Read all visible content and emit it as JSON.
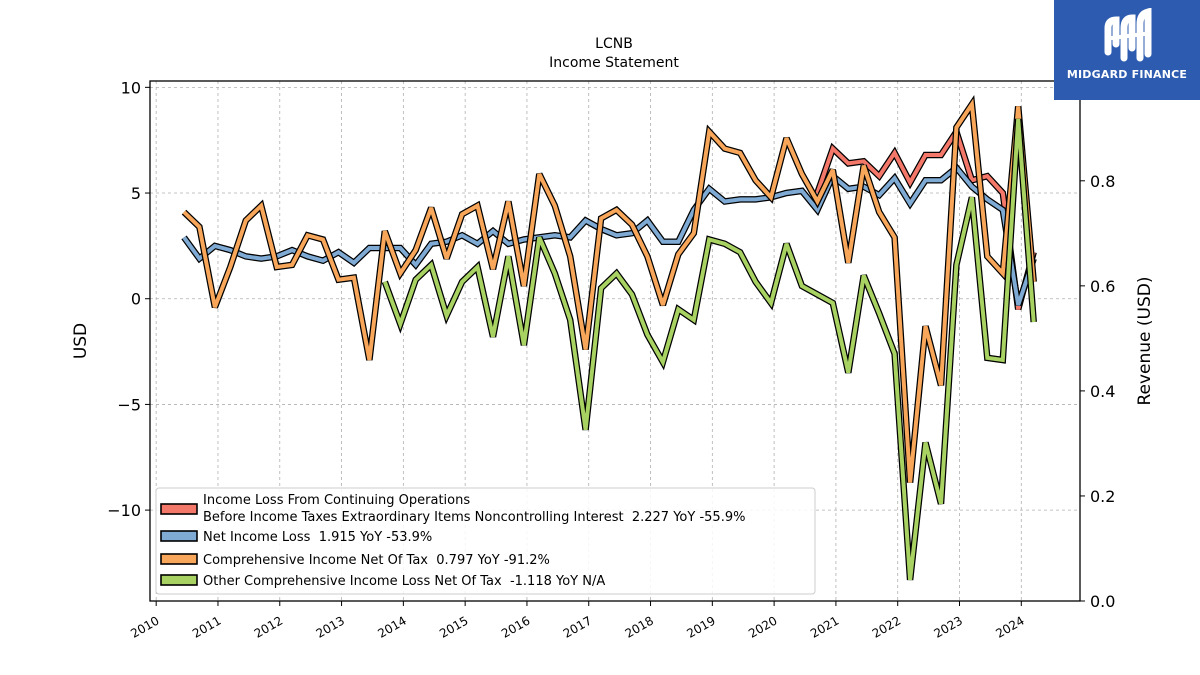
{
  "logo": {
    "text": "MIDGARD FINANCE",
    "background": "#2d5bb0"
  },
  "chart_data": {
    "type": "line",
    "title": "LCNB",
    "subtitle": "Income Statement",
    "ylabel": "USD",
    "y2label": "Revenue (USD)",
    "ylim": [
      -14.3,
      10.3
    ],
    "y2lim": [
      0.0,
      0.99
    ],
    "yticks": [
      10,
      5,
      0,
      -5,
      -10
    ],
    "ytick_labels": [
      "10",
      "5",
      "0",
      "−5",
      "−10"
    ],
    "y2ticks": [
      0.0,
      0.2,
      0.4,
      0.6,
      0.8
    ],
    "y2tick_labels": [
      "0.0",
      "0.2",
      "0.4",
      "0.6",
      "0.8"
    ],
    "xlim": [
      2009.9,
      2024.95
    ],
    "xticks": [
      2010,
      2011,
      2012,
      2013,
      2014,
      2015,
      2016,
      2017,
      2018,
      2019,
      2020,
      2021,
      2022,
      2023,
      2024
    ],
    "xtick_labels": [
      "2010",
      "2011",
      "2012",
      "2013",
      "2014",
      "2015",
      "2016",
      "2017",
      "2018",
      "2019",
      "2020",
      "2021",
      "2022",
      "2023",
      "2024"
    ],
    "grid": true,
    "legend_position": "lower-left",
    "series": [
      {
        "name": "Income Loss From Continuing Operations\nBefore Income Taxes Extraordinary Items Noncontrolling Interest  2.227 YoY -55.9%",
        "color": "#f4786a",
        "points": [
          [
            2020.7,
            5.0
          ],
          [
            2020.95,
            7.1
          ],
          [
            2021.2,
            6.4
          ],
          [
            2021.45,
            6.5
          ],
          [
            2021.7,
            5.8
          ],
          [
            2021.95,
            6.9
          ],
          [
            2022.2,
            5.5
          ],
          [
            2022.45,
            6.8
          ],
          [
            2022.7,
            6.8
          ],
          [
            2022.95,
            7.9
          ],
          [
            2023.2,
            5.6
          ],
          [
            2023.45,
            5.8
          ],
          [
            2023.7,
            5.0
          ],
          [
            2023.95,
            -0.5
          ],
          [
            2024.2,
            2.2
          ]
        ]
      },
      {
        "name": "Net Income Loss  1.915 YoY -53.9%",
        "color": "#7eaad4",
        "points": [
          [
            2010.45,
            2.9
          ],
          [
            2010.7,
            1.9
          ],
          [
            2010.95,
            2.5
          ],
          [
            2011.2,
            2.3
          ],
          [
            2011.45,
            2.0
          ],
          [
            2011.7,
            1.9
          ],
          [
            2011.95,
            2.0
          ],
          [
            2012.2,
            2.3
          ],
          [
            2012.45,
            2.0
          ],
          [
            2012.7,
            1.8
          ],
          [
            2012.95,
            2.2
          ],
          [
            2013.2,
            1.7
          ],
          [
            2013.45,
            2.4
          ],
          [
            2013.7,
            2.4
          ],
          [
            2013.95,
            2.4
          ],
          [
            2014.2,
            1.6
          ],
          [
            2014.45,
            2.6
          ],
          [
            2014.7,
            2.7
          ],
          [
            2014.95,
            3.0
          ],
          [
            2015.2,
            2.6
          ],
          [
            2015.45,
            3.2
          ],
          [
            2015.7,
            2.6
          ],
          [
            2015.95,
            2.8
          ],
          [
            2016.2,
            2.9
          ],
          [
            2016.45,
            3.0
          ],
          [
            2016.7,
            2.9
          ],
          [
            2016.95,
            3.7
          ],
          [
            2017.2,
            3.3
          ],
          [
            2017.45,
            3.0
          ],
          [
            2017.7,
            3.1
          ],
          [
            2017.95,
            3.7
          ],
          [
            2018.2,
            2.7
          ],
          [
            2018.45,
            2.7
          ],
          [
            2018.7,
            4.2
          ],
          [
            2018.95,
            5.2
          ],
          [
            2019.2,
            4.6
          ],
          [
            2019.45,
            4.7
          ],
          [
            2019.7,
            4.7
          ],
          [
            2019.95,
            4.8
          ],
          [
            2020.2,
            5.0
          ],
          [
            2020.45,
            5.1
          ],
          [
            2020.7,
            4.2
          ],
          [
            2020.95,
            5.8
          ],
          [
            2021.2,
            5.2
          ],
          [
            2021.45,
            5.3
          ],
          [
            2021.7,
            4.9
          ],
          [
            2021.95,
            5.7
          ],
          [
            2022.2,
            4.5
          ],
          [
            2022.45,
            5.6
          ],
          [
            2022.7,
            5.6
          ],
          [
            2022.95,
            6.2
          ],
          [
            2023.2,
            5.3
          ],
          [
            2023.45,
            4.7
          ],
          [
            2023.7,
            4.2
          ],
          [
            2023.95,
            -0.3
          ],
          [
            2024.2,
            1.9
          ]
        ]
      },
      {
        "name": "Comprehensive Income Net Of Tax  0.797 YoY -91.2%",
        "color": "#f7a65a",
        "points": [
          [
            2010.45,
            4.1
          ],
          [
            2010.7,
            3.4
          ],
          [
            2010.95,
            -0.4
          ],
          [
            2011.2,
            1.5
          ],
          [
            2011.45,
            3.7
          ],
          [
            2011.7,
            4.4
          ],
          [
            2011.95,
            1.5
          ],
          [
            2012.2,
            1.6
          ],
          [
            2012.45,
            3.0
          ],
          [
            2012.7,
            2.8
          ],
          [
            2012.95,
            0.9
          ],
          [
            2013.2,
            1.0
          ],
          [
            2013.45,
            -2.9
          ],
          [
            2013.7,
            3.2
          ],
          [
            2013.95,
            1.2
          ],
          [
            2014.2,
            2.3
          ],
          [
            2014.45,
            4.3
          ],
          [
            2014.7,
            1.9
          ],
          [
            2014.95,
            4.0
          ],
          [
            2015.2,
            4.4
          ],
          [
            2015.45,
            1.4
          ],
          [
            2015.7,
            4.6
          ],
          [
            2015.95,
            0.6
          ],
          [
            2016.2,
            5.9
          ],
          [
            2016.45,
            4.4
          ],
          [
            2016.7,
            2.0
          ],
          [
            2016.95,
            -2.4
          ],
          [
            2017.2,
            3.8
          ],
          [
            2017.45,
            4.2
          ],
          [
            2017.7,
            3.5
          ],
          [
            2017.95,
            2.0
          ],
          [
            2018.2,
            -0.3
          ],
          [
            2018.45,
            2.1
          ],
          [
            2018.7,
            3.1
          ],
          [
            2018.95,
            7.9
          ],
          [
            2019.2,
            7.1
          ],
          [
            2019.45,
            6.9
          ],
          [
            2019.7,
            5.6
          ],
          [
            2019.95,
            4.8
          ],
          [
            2020.2,
            7.6
          ],
          [
            2020.45,
            5.9
          ],
          [
            2020.7,
            4.6
          ],
          [
            2020.95,
            6.1
          ],
          [
            2021.2,
            1.7
          ],
          [
            2021.45,
            6.3
          ],
          [
            2021.7,
            4.1
          ],
          [
            2021.95,
            2.9
          ],
          [
            2022.2,
            -8.7
          ],
          [
            2022.45,
            -1.3
          ],
          [
            2022.7,
            -4.1
          ],
          [
            2022.95,
            8.1
          ],
          [
            2023.2,
            9.2
          ],
          [
            2023.45,
            2.0
          ],
          [
            2023.7,
            1.2
          ],
          [
            2023.95,
            9.1
          ],
          [
            2024.2,
            0.8
          ]
        ]
      },
      {
        "name": "Other Comprehensive Income Loss Net Of Tax  -1.118 YoY N/A",
        "color": "#a8d262",
        "points": [
          [
            2013.7,
            0.8
          ],
          [
            2013.95,
            -1.2
          ],
          [
            2014.2,
            0.9
          ],
          [
            2014.45,
            1.6
          ],
          [
            2014.7,
            -0.8
          ],
          [
            2014.95,
            0.8
          ],
          [
            2015.2,
            1.5
          ],
          [
            2015.45,
            -1.8
          ],
          [
            2015.7,
            2.0
          ],
          [
            2015.95,
            -2.2
          ],
          [
            2016.2,
            2.9
          ],
          [
            2016.45,
            1.2
          ],
          [
            2016.7,
            -1.0
          ],
          [
            2016.95,
            -6.2
          ],
          [
            2017.2,
            0.5
          ],
          [
            2017.45,
            1.2
          ],
          [
            2017.7,
            0.2
          ],
          [
            2017.95,
            -1.7
          ],
          [
            2018.2,
            -3.0
          ],
          [
            2018.45,
            -0.5
          ],
          [
            2018.7,
            -1.0
          ],
          [
            2018.95,
            2.8
          ],
          [
            2019.2,
            2.6
          ],
          [
            2019.45,
            2.2
          ],
          [
            2019.7,
            0.8
          ],
          [
            2019.95,
            -0.2
          ],
          [
            2020.2,
            2.6
          ],
          [
            2020.45,
            0.6
          ],
          [
            2020.7,
            0.2
          ],
          [
            2020.95,
            -0.2
          ],
          [
            2021.2,
            -3.5
          ],
          [
            2021.45,
            1.1
          ],
          [
            2021.7,
            -0.7
          ],
          [
            2021.95,
            -2.6
          ],
          [
            2022.2,
            -13.3
          ],
          [
            2022.45,
            -6.8
          ],
          [
            2022.7,
            -9.7
          ],
          [
            2022.95,
            1.6
          ],
          [
            2023.2,
            4.8
          ],
          [
            2023.45,
            -2.8
          ],
          [
            2023.7,
            -2.9
          ],
          [
            2023.95,
            8.5
          ],
          [
            2024.2,
            -1.1
          ]
        ]
      }
    ]
  }
}
